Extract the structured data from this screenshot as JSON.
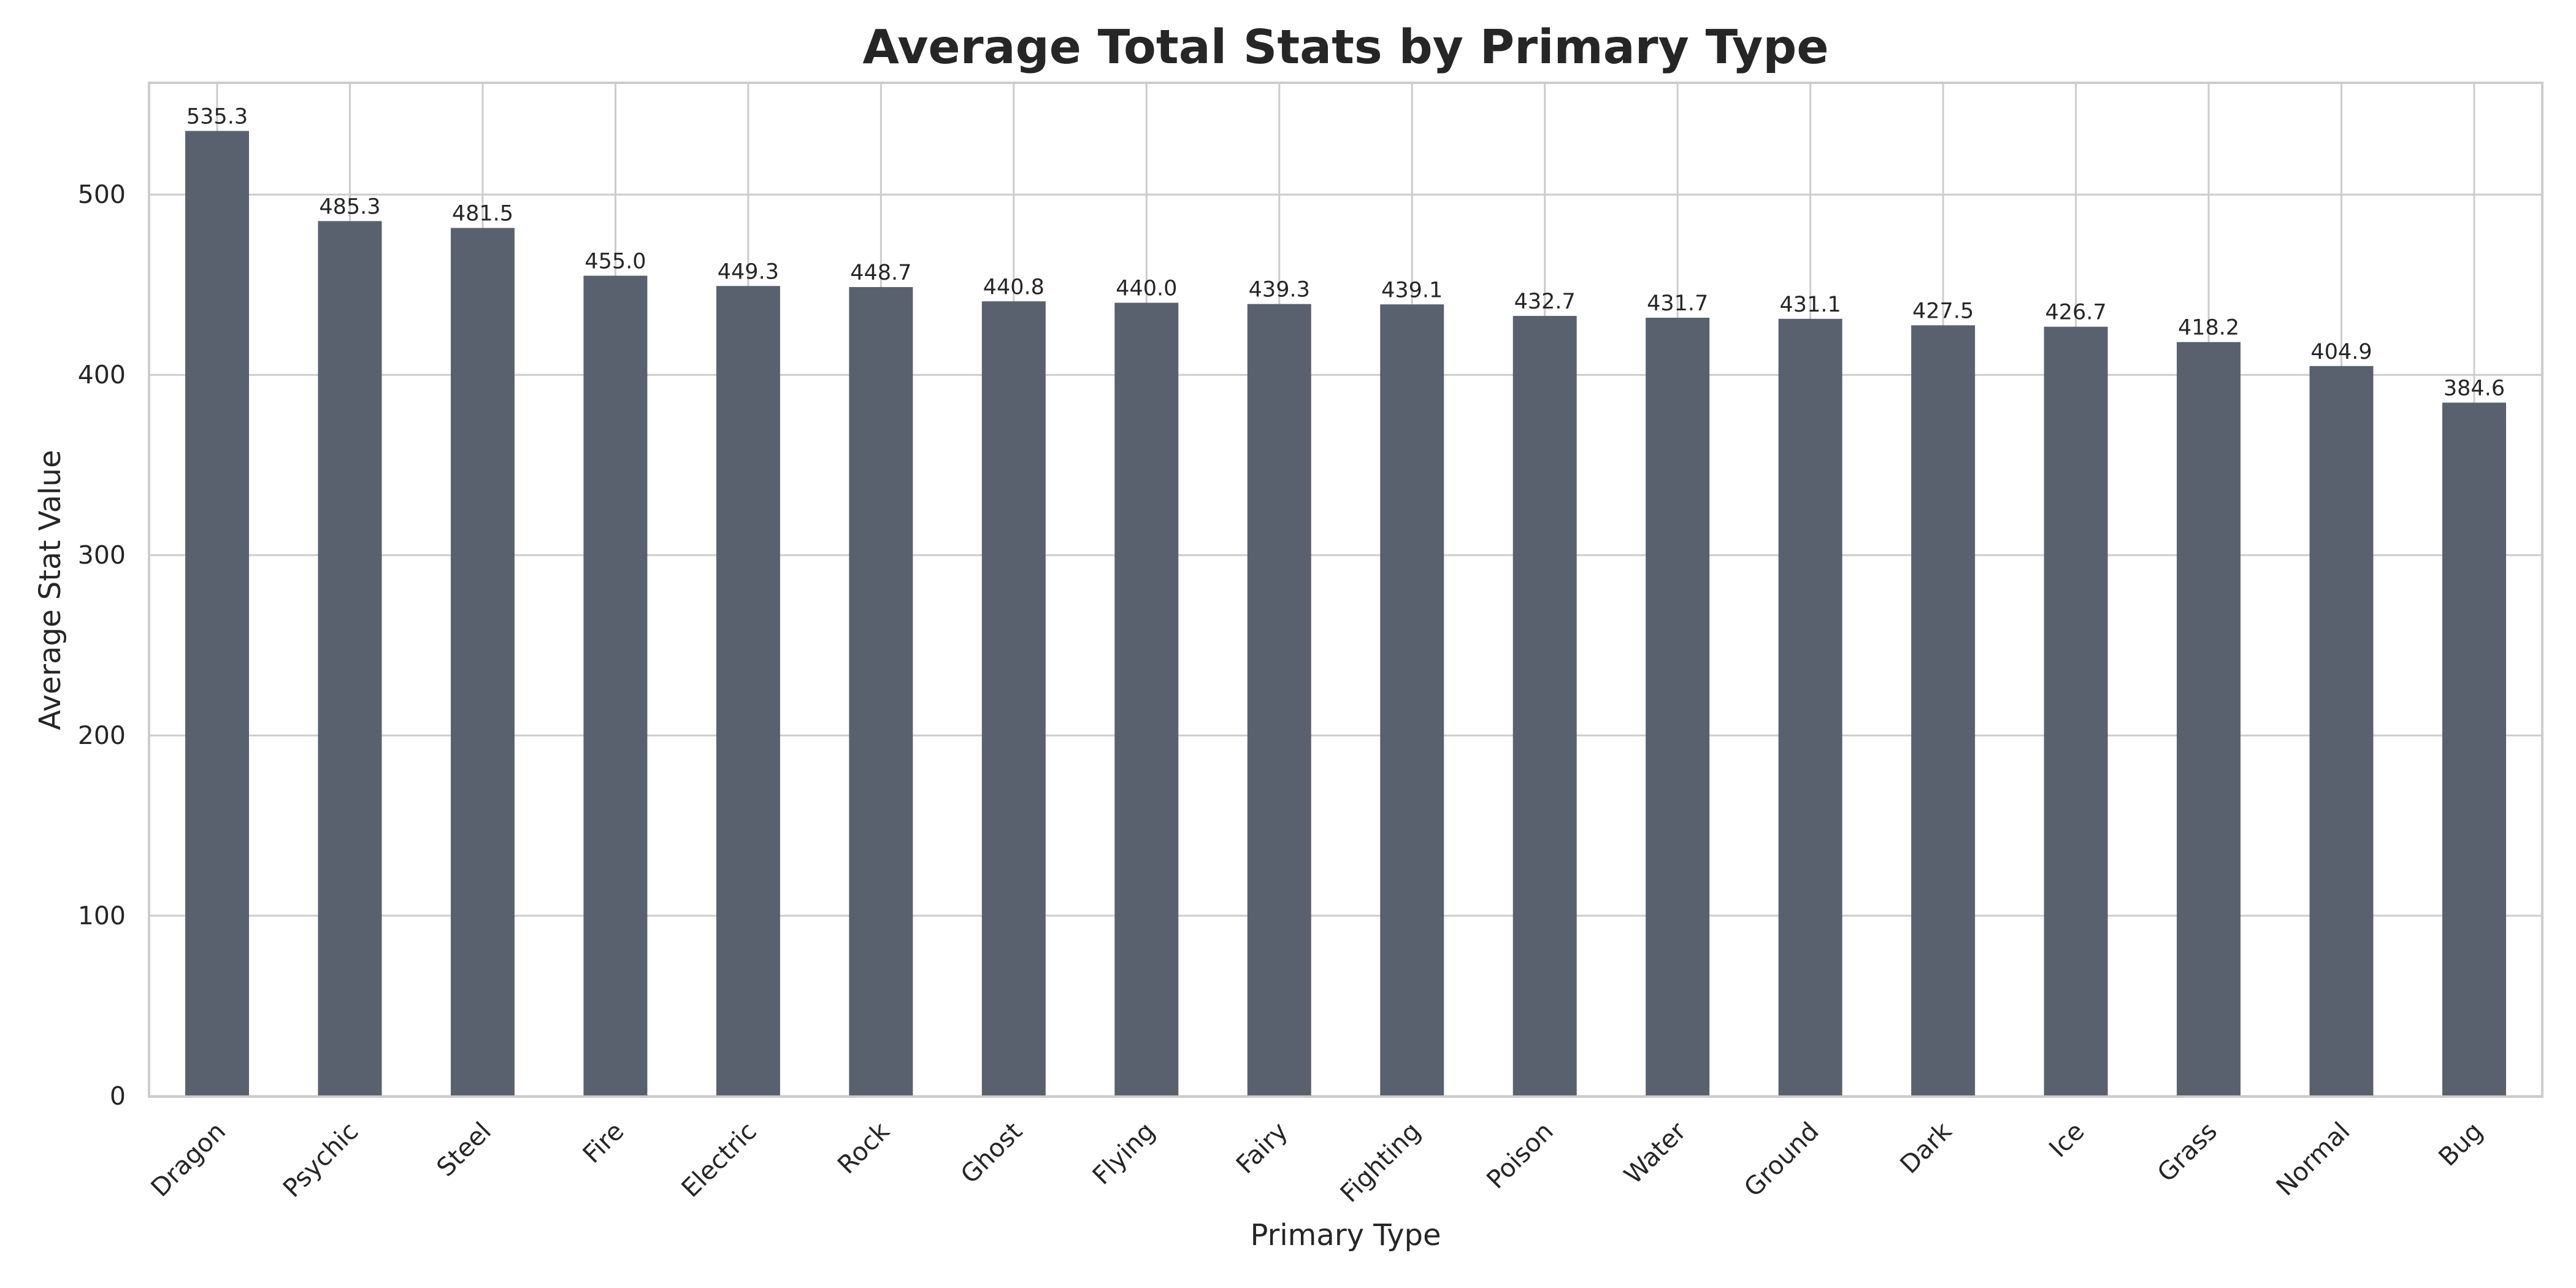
{
  "chart_data": {
    "type": "bar",
    "title": "Average Total Stats by Primary Type",
    "xlabel": "Primary Type",
    "ylabel": "Average Stat Value",
    "categories": [
      "Dragon",
      "Psychic",
      "Steel",
      "Fire",
      "Electric",
      "Rock",
      "Ghost",
      "Flying",
      "Fairy",
      "Fighting",
      "Poison",
      "Water",
      "Ground",
      "Dark",
      "Ice",
      "Grass",
      "Normal",
      "Bug"
    ],
    "values": [
      535.3,
      485.3,
      481.5,
      455.0,
      449.3,
      448.7,
      440.8,
      440.0,
      439.3,
      439.1,
      432.7,
      431.7,
      431.1,
      427.5,
      426.7,
      418.2,
      404.9,
      384.6
    ],
    "value_labels": [
      "535.3",
      "485.3",
      "481.5",
      "455.0",
      "449.3",
      "448.7",
      "440.8",
      "440.0",
      "439.3",
      "439.1",
      "432.7",
      "431.7",
      "431.1",
      "427.5",
      "426.7",
      "418.2",
      "404.9",
      "384.6"
    ],
    "ylim": [
      0,
      562
    ],
    "yticks": [
      0,
      100,
      200,
      300,
      400,
      500
    ],
    "grid": true,
    "legend": "none",
    "bar_color": "#5a616e"
  }
}
